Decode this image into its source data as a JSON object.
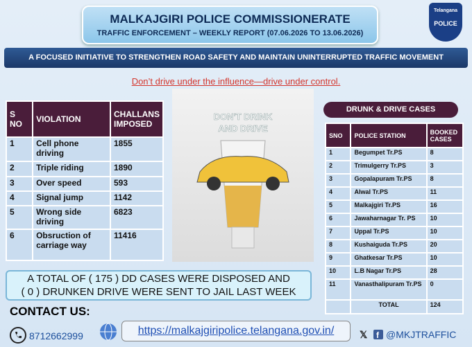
{
  "header": {
    "title": "MALKAJGIRI POLICE COMMISSIONERATE",
    "subtitle": "TRAFFIC ENFORCEMENT – WEEKLY REPORT (07.06.2026 TO 13.06.2026)",
    "logo_top": "Telangana",
    "logo_bottom": "POLICE"
  },
  "banner": "A FOCUSED INITIATIVE TO STRENGTHEN ROAD SAFETY AND MAINTAIN UNINTERRUPTED TRAFFIC MOVEMENT",
  "slogan": "Don’t drive under the influence—drive under control.",
  "violations": {
    "headers": [
      "S NO",
      "VIOLATION",
      "CHALLANS IMPOSED"
    ],
    "rows": [
      [
        "1",
        "Cell phone driving",
        "1855"
      ],
      [
        "2",
        "Triple riding",
        "1890"
      ],
      [
        "3",
        "Over speed",
        "593"
      ],
      [
        "4",
        "Signal jump",
        "1142"
      ],
      [
        "5",
        "Wrong side driving",
        "6823"
      ],
      [
        "6",
        "Obsruction of carriage way",
        "11416"
      ]
    ]
  },
  "poster": {
    "line1": "DON'T DRINK",
    "line2": "AND DRIVE"
  },
  "drunk_drive": {
    "title": "DRUNK & DRIVE CASES",
    "headers": [
      "SNO",
      "POLICE STATION",
      "BOOKED CASES"
    ],
    "rows": [
      [
        "1",
        "Begumpet Tr.PS",
        "8"
      ],
      [
        "2",
        "Trimulgerry Tr.PS",
        "3"
      ],
      [
        "3",
        "Gopalapuram Tr.PS",
        "8"
      ],
      [
        "4",
        "Alwal Tr.PS",
        "11"
      ],
      [
        "5",
        "Malkajgiri Tr.PS",
        "16"
      ],
      [
        "6",
        "Jawaharnagar Tr. PS",
        "10"
      ],
      [
        "7",
        "Uppal Tr.PS",
        "10"
      ],
      [
        "8",
        "Kushaiguda Tr.PS",
        "20"
      ],
      [
        "9",
        "Ghatkesar Tr.PS",
        "10"
      ],
      [
        "10",
        "L.B Nagar Tr.PS",
        "28"
      ],
      [
        "11",
        "Vanasthalipuram Tr.PS",
        "0"
      ]
    ],
    "total": [
      "TOTAL",
      "124"
    ]
  },
  "summary": [
    "A TOTAL OF ( 175 ) DD CASES WERE  DISPOSED AND",
    "( 0 ) DRUNKEN DRIVE WERE SENT TO JAIL LAST WEEK"
  ],
  "contact": {
    "heading": "CONTACT US:",
    "phone": "8712662999",
    "url": "https://malkajgiripolice.telangana.gov.in/",
    "handle": "@MKJTRAFFIC"
  }
}
